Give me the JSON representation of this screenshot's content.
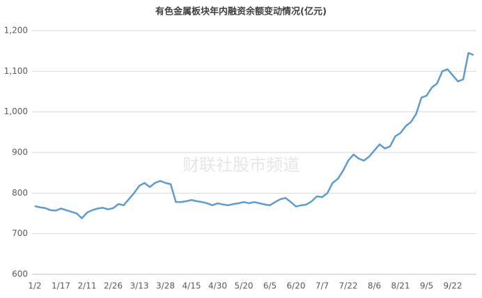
{
  "chart_data": {
    "type": "line",
    "title": "有色金属板块年内融资余额变动情况(亿元)",
    "watermark": "财联社股市频道",
    "categories": [
      "1/2",
      null,
      null,
      null,
      null,
      "1/17",
      null,
      null,
      null,
      null,
      "2/11",
      null,
      null,
      null,
      null,
      "2/26",
      null,
      null,
      null,
      null,
      "3/13",
      null,
      null,
      null,
      null,
      "3/28",
      null,
      null,
      null,
      null,
      "4/15",
      null,
      null,
      null,
      null,
      "4/30",
      null,
      null,
      null,
      null,
      "5/20",
      null,
      null,
      null,
      null,
      "6/5",
      null,
      null,
      null,
      null,
      "6/20",
      null,
      null,
      null,
      null,
      "7/7",
      null,
      null,
      null,
      null,
      "7/22",
      null,
      null,
      null,
      null,
      "8/6",
      null,
      null,
      null,
      null,
      "8/21",
      null,
      null,
      null,
      null,
      "9/5",
      null,
      null,
      null,
      null,
      "9/22",
      null,
      null,
      null,
      null
    ],
    "values": [
      768,
      765,
      763,
      758,
      757,
      762,
      758,
      754,
      750,
      738,
      752,
      758,
      762,
      764,
      760,
      763,
      773,
      770,
      785,
      800,
      818,
      825,
      815,
      825,
      830,
      825,
      822,
      778,
      778,
      780,
      783,
      780,
      778,
      775,
      770,
      775,
      772,
      770,
      773,
      775,
      778,
      775,
      778,
      775,
      772,
      770,
      778,
      785,
      788,
      778,
      767,
      770,
      772,
      780,
      792,
      790,
      800,
      825,
      835,
      855,
      880,
      895,
      885,
      880,
      890,
      905,
      920,
      910,
      915,
      940,
      948,
      965,
      975,
      995,
      1035,
      1040,
      1060,
      1070,
      1100,
      1105,
      1090,
      1075,
      1080,
      1145,
      1140
    ],
    "color": "#5b9bd5",
    "ylim": [
      600,
      1200
    ],
    "yticks": [
      600,
      700,
      800,
      900,
      {
        "value": 1000,
        "label": "1,000"
      },
      {
        "value": 1100,
        "label": "1,100"
      },
      {
        "value": 1200,
        "label": "1,200"
      }
    ],
    "grid": true
  }
}
